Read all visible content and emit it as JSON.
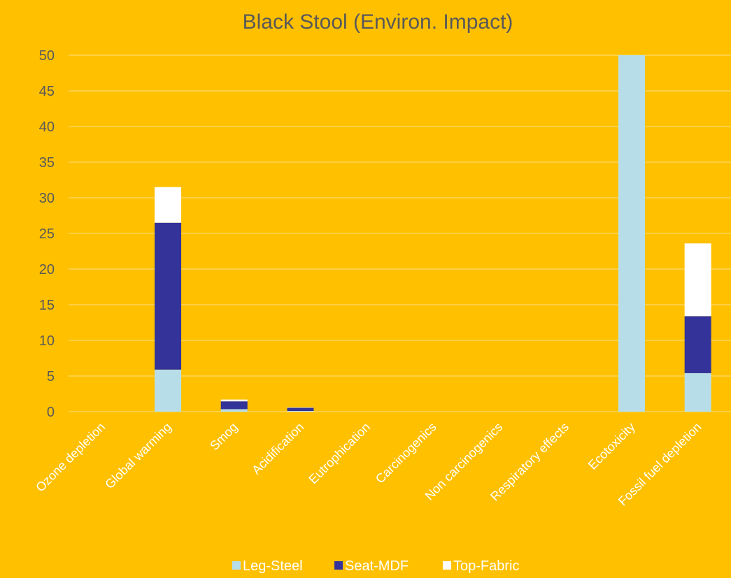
{
  "chart_data": {
    "type": "bar",
    "stacked": true,
    "title": "Black Stool (Environ. Impact)",
    "xlabel": "",
    "ylabel": "",
    "ylim": [
      0,
      50
    ],
    "yticks": [
      "0",
      "5",
      "10",
      "15",
      "20",
      "25",
      "30",
      "35",
      "40",
      "45",
      "50"
    ],
    "grid": true,
    "legend_position": "bottom",
    "categories": [
      "Ozone depletion",
      "Global warming",
      "Smog",
      "Acidification",
      "Eutrophication",
      "Carcinogenics",
      "Non carcinogenics",
      "Respiratory effects",
      "Ecotoxicity",
      "Fossil fuel depletion"
    ],
    "series": [
      {
        "name": "Leg-Steel",
        "color": "#B7DEE8",
        "values": [
          0,
          5.9,
          0.35,
          0.1,
          0,
          0,
          0,
          0,
          50,
          5.4
        ]
      },
      {
        "name": "Seat-MDF",
        "color": "#333399",
        "values": [
          0,
          20.6,
          1.1,
          0.45,
          0,
          0,
          0,
          0,
          0,
          8.0
        ]
      },
      {
        "name": "Top-Fabric",
        "color": "#FFFFFF",
        "values": [
          0,
          5.0,
          0.25,
          0.05,
          0,
          0,
          0,
          0,
          0,
          10.2
        ]
      }
    ]
  }
}
